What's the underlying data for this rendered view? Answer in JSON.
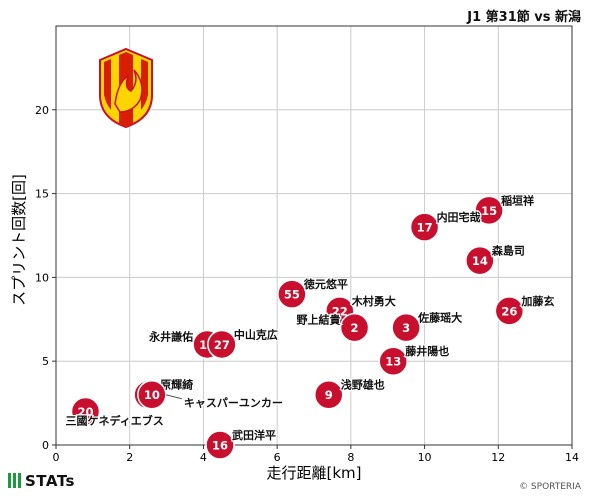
{
  "header": {
    "match": "J1 第31節 vs 新潟"
  },
  "footer": {
    "brand": "STATs",
    "credit": "© SPORTERIA"
  },
  "colors": {
    "marker": "#c8102e",
    "grid": "#cccccc",
    "axis": "#333333",
    "crest_red": "#d81e05",
    "crest_yellow": "#ffd400"
  },
  "chart_data": {
    "type": "scatter",
    "xlabel": "走行距離[km]",
    "ylabel": "スプリント回数[回]",
    "xlim": [
      0,
      14
    ],
    "ylim": [
      0,
      25
    ],
    "xticks": [
      0,
      2,
      4,
      6,
      8,
      10,
      12,
      14
    ],
    "yticks": [
      0,
      5,
      10,
      15,
      20
    ],
    "grid": true,
    "points": [
      {
        "number": "15",
        "name": "稲垣祥",
        "x": 11.75,
        "y": 14,
        "label_side": "right"
      },
      {
        "number": "17",
        "name": "内田宅哉",
        "x": 10.0,
        "y": 13,
        "label_side": "right"
      },
      {
        "number": "14",
        "name": "森島司",
        "x": 11.5,
        "y": 11,
        "label_side": "right"
      },
      {
        "number": "26",
        "name": "加藤玄",
        "x": 12.3,
        "y": 8,
        "label_side": "right"
      },
      {
        "number": "55",
        "name": "徳元悠平",
        "x": 6.4,
        "y": 9,
        "label_side": "right"
      },
      {
        "number": "22",
        "name": "木村勇大",
        "x": 7.7,
        "y": 8,
        "label_side": "right"
      },
      {
        "number": "2",
        "name": "野上結貴",
        "x": 8.1,
        "y": 7,
        "label_side": "left"
      },
      {
        "number": "3",
        "name": "佐藤瑶大",
        "x": 9.5,
        "y": 7,
        "label_side": "right"
      },
      {
        "number": "18",
        "name": "永井謙佑",
        "x": 4.1,
        "y": 6,
        "label_side": "left"
      },
      {
        "number": "27",
        "name": "中山克広",
        "x": 4.5,
        "y": 6,
        "label_side": "right"
      },
      {
        "number": "13",
        "name": "藤井陽也",
        "x": 9.15,
        "y": 5,
        "label_side": "right"
      },
      {
        "number": "77",
        "name": "原輝綺",
        "x": 2.5,
        "y": 3,
        "label_side": "right"
      },
      {
        "number": "10",
        "name": "キャスパーユンカー",
        "x": 2.6,
        "y": 3,
        "label_side": "right-far"
      },
      {
        "number": "9",
        "name": "浅野雄也",
        "x": 7.4,
        "y": 3,
        "label_side": "right"
      },
      {
        "number": "20",
        "name": "三國ケネディエブス",
        "x": 0.8,
        "y": 2,
        "label_side": "below-right"
      },
      {
        "number": "16",
        "name": "武田洋平",
        "x": 4.45,
        "y": 0,
        "label_side": "right"
      }
    ]
  }
}
